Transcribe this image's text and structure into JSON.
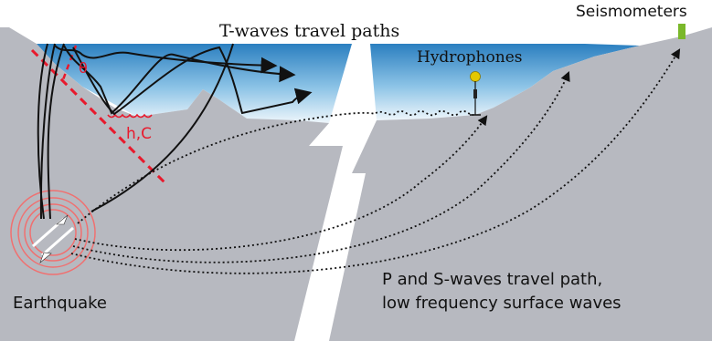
{
  "labels": {
    "t_waves": "T-waves travel paths",
    "seismometers": "Seismometers",
    "hydrophones": "Hydrophones",
    "earthquake": "Earthquake",
    "p_s_line1": "P and S-waves travel path,",
    "p_s_line2": "low frequency surface waves",
    "theta": "θ",
    "h_c": "h,C"
  },
  "colors": {
    "ground": "#b7b9c0",
    "ocean_deep": "#2b7fc0",
    "ocean_light": "#ddeef8",
    "accent_red": "#e8192c",
    "seismometer_green": "#7ab82a",
    "hydrophone_yellow": "#e3c800",
    "ink": "#111111"
  }
}
